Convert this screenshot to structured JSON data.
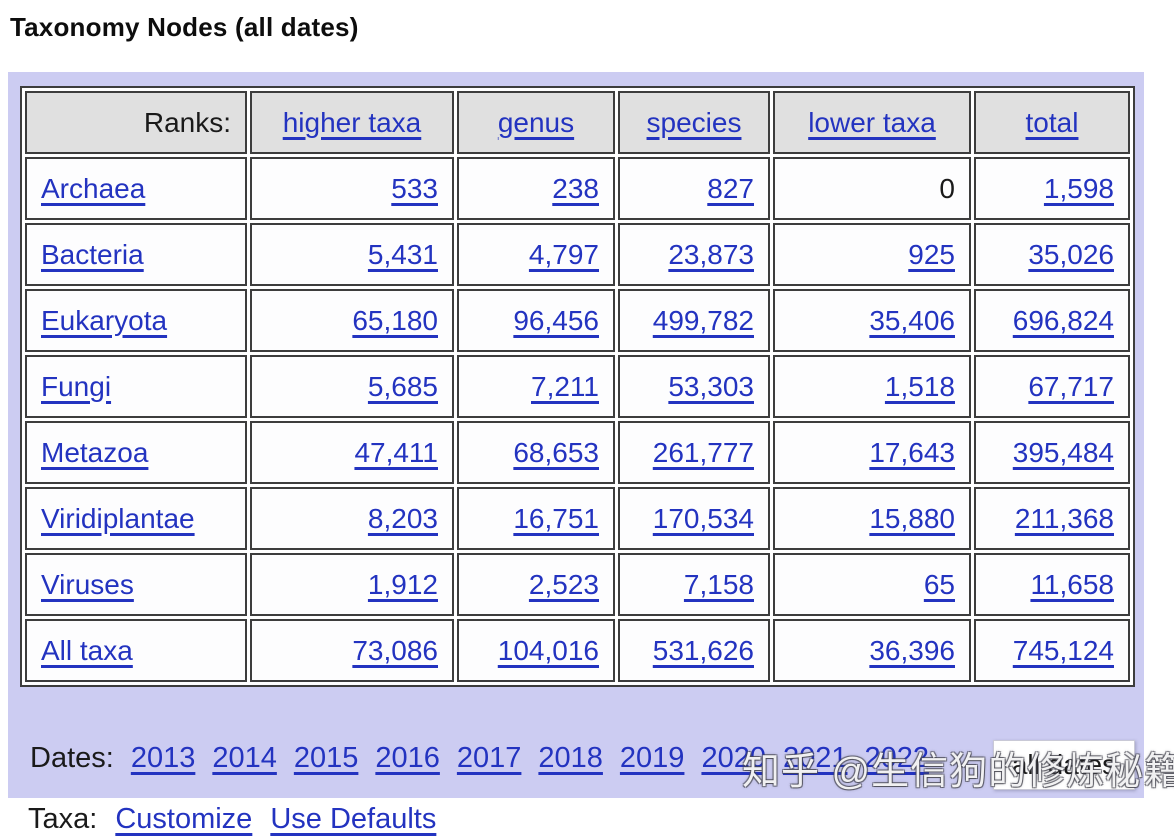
{
  "page": {
    "title": "Taxonomy Nodes (all dates)"
  },
  "table": {
    "header_label": "Ranks:",
    "columns": [
      "higher taxa",
      "genus",
      "species",
      "lower taxa",
      "total"
    ],
    "rows": [
      {
        "label": "Archaea",
        "values": [
          "533",
          "238",
          "827",
          "0",
          "1,598"
        ],
        "link_flags": [
          true,
          true,
          true,
          false,
          true
        ]
      },
      {
        "label": "Bacteria",
        "values": [
          "5,431",
          "4,797",
          "23,873",
          "925",
          "35,026"
        ],
        "link_flags": [
          true,
          true,
          true,
          true,
          true
        ]
      },
      {
        "label": "Eukaryota",
        "values": [
          "65,180",
          "96,456",
          "499,782",
          "35,406",
          "696,824"
        ],
        "link_flags": [
          true,
          true,
          true,
          true,
          true
        ]
      },
      {
        "label": "Fungi",
        "values": [
          "5,685",
          "7,211",
          "53,303",
          "1,518",
          "67,717"
        ],
        "link_flags": [
          true,
          true,
          true,
          true,
          true
        ]
      },
      {
        "label": "Metazoa",
        "values": [
          "47,411",
          "68,653",
          "261,777",
          "17,643",
          "395,484"
        ],
        "link_flags": [
          true,
          true,
          true,
          true,
          true
        ]
      },
      {
        "label": "Viridiplantae",
        "values": [
          "8,203",
          "16,751",
          "170,534",
          "15,880",
          "211,368"
        ],
        "link_flags": [
          true,
          true,
          true,
          true,
          true
        ]
      },
      {
        "label": "Viruses",
        "values": [
          "1,912",
          "2,523",
          "7,158",
          "65",
          "11,658"
        ],
        "link_flags": [
          true,
          true,
          true,
          true,
          true
        ]
      },
      {
        "label": "All taxa",
        "values": [
          "73,086",
          "104,016",
          "531,626",
          "36,396",
          "745,124"
        ],
        "link_flags": [
          true,
          true,
          true,
          true,
          true
        ]
      }
    ]
  },
  "dates": {
    "label": "Dates:",
    "years": [
      "2013",
      "2014",
      "2015",
      "2016",
      "2017",
      "2018",
      "2019",
      "2020",
      "2021",
      "2022"
    ],
    "selected": "all dates"
  },
  "footer": {
    "label": "Taxa:",
    "links": [
      "Customize",
      "Use Defaults"
    ]
  },
  "watermark": "知乎 @生信狗的修炼秘籍",
  "colors": {
    "link_blue": "#2333c0",
    "panel_lavender": "#ccccf2",
    "header_gray": "#e0e0e0",
    "border_dark": "#3d3d3d",
    "page_background": "#ffffff"
  }
}
